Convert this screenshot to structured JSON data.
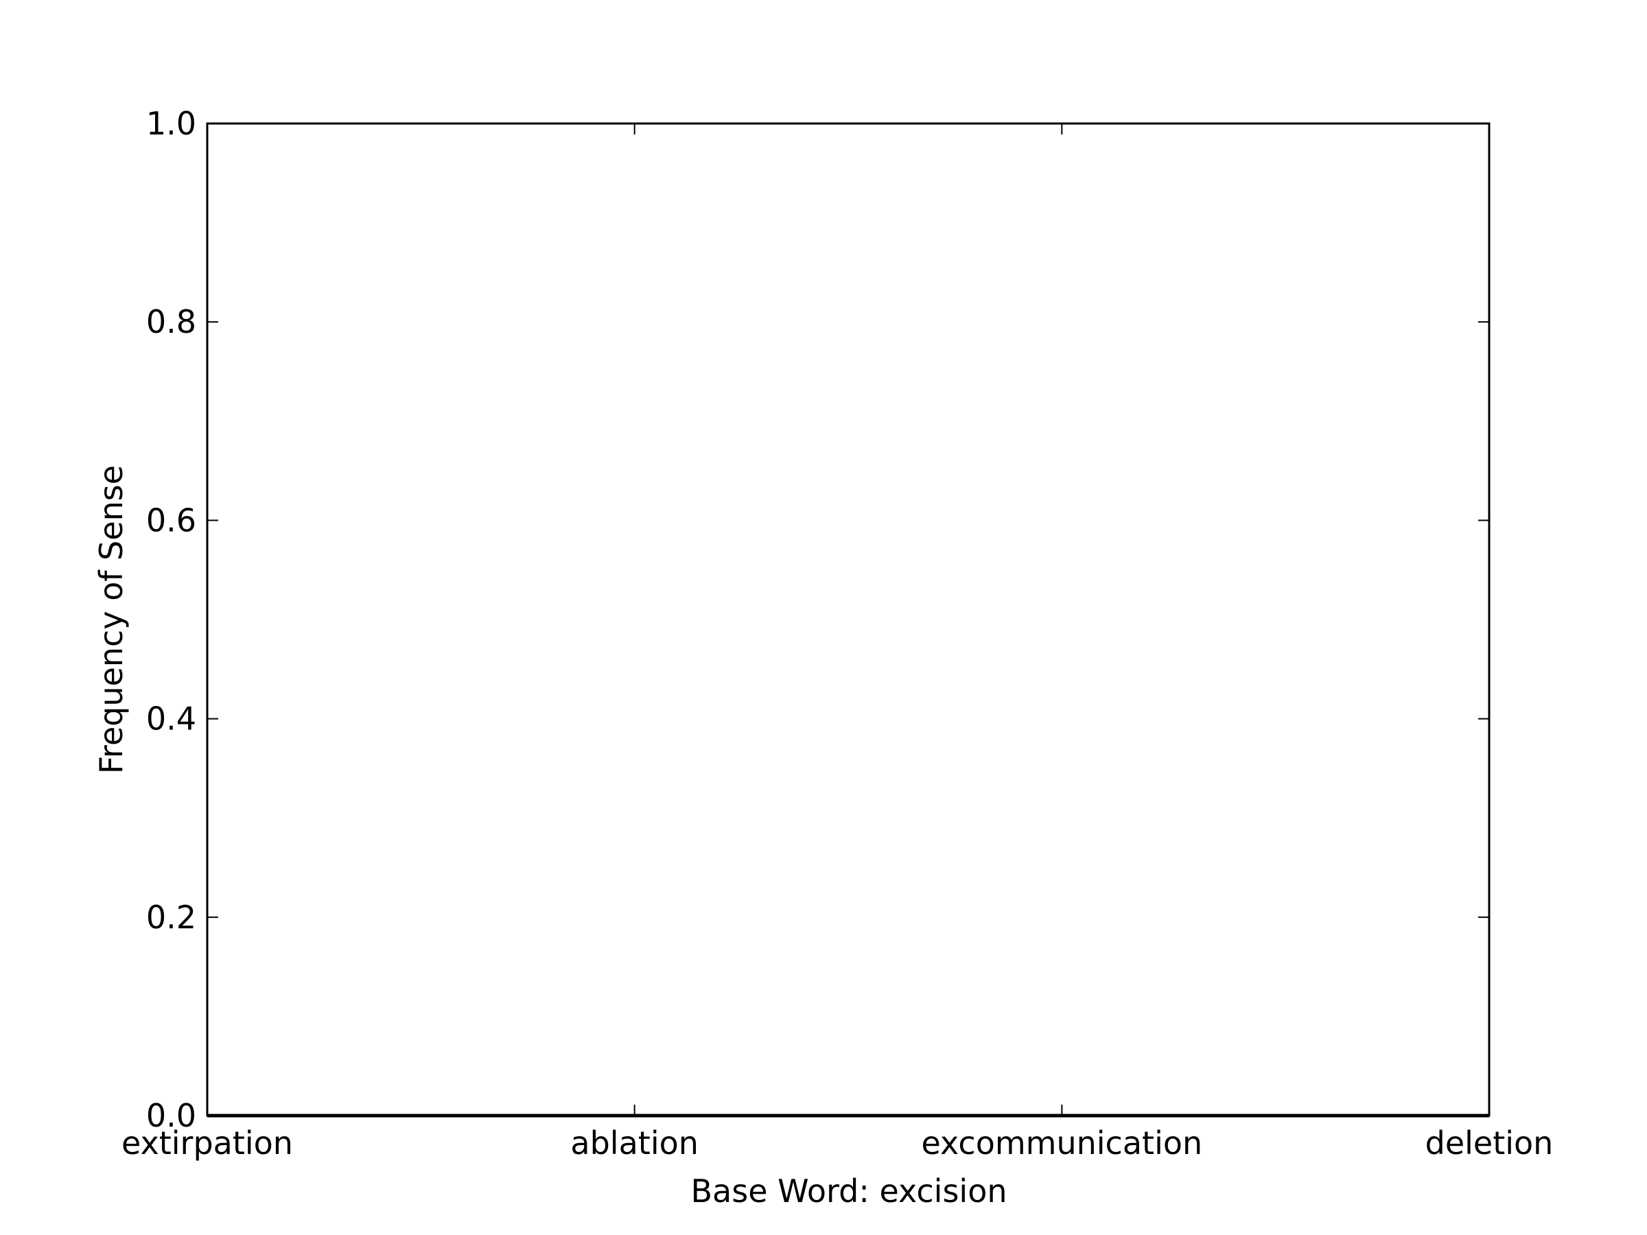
{
  "chart_data": {
    "type": "bar",
    "title": "",
    "xlabel": "Base Word: excision",
    "ylabel": "Frequency of Sense",
    "categories": [
      "extirpation",
      "ablation",
      "excommunication",
      "deletion"
    ],
    "values": [
      0,
      0,
      0,
      0
    ],
    "ylim": [
      0,
      1.0
    ],
    "yticks": [
      "0.0",
      "0.2",
      "0.4",
      "0.6",
      "0.8",
      "1.0"
    ],
    "grid": false,
    "legend": "none"
  }
}
